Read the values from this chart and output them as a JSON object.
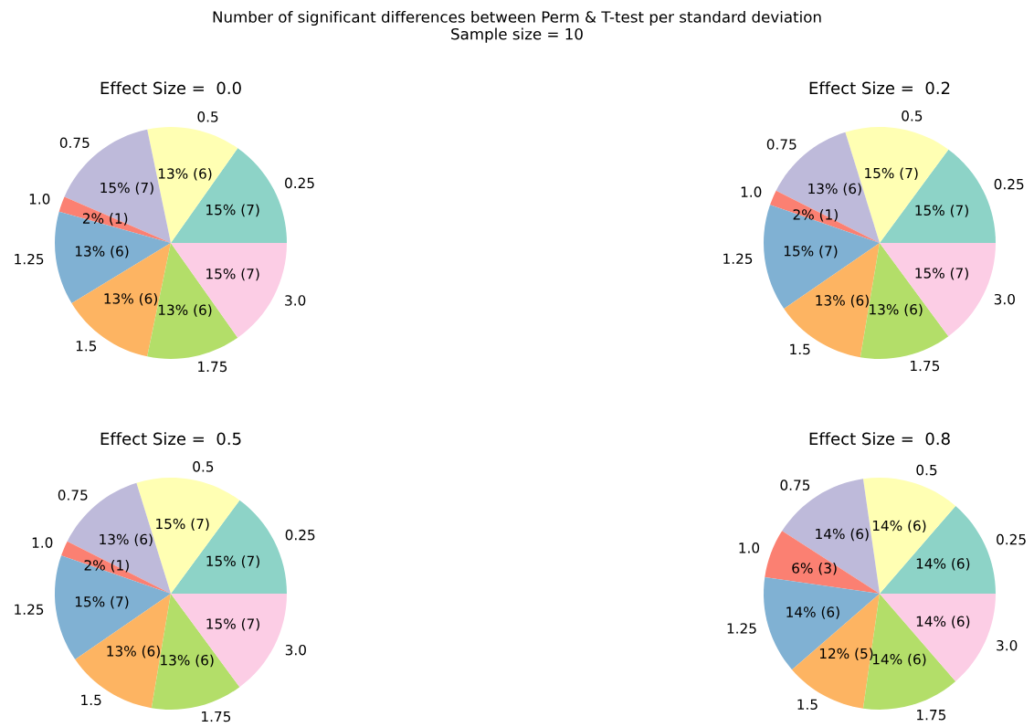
{
  "chart_data": [
    {
      "type": "pie",
      "title": "Effect Size =  0.0",
      "annotations": [
        "Number of significant differences between Perm & T-test per standard deviation\nSample size = 10"
      ],
      "categories": [
        "0.25",
        "0.5",
        "0.75",
        "1.0",
        "1.25",
        "1.5",
        "1.75",
        "3.0"
      ],
      "values": [
        7,
        6,
        7,
        1,
        6,
        6,
        6,
        7
      ],
      "value_labels": [
        "15% (7)",
        "13% (6)",
        "15% (7)",
        "2% (1)",
        "13% (6)",
        "13% (6)",
        "13% (6)",
        "15% (7)"
      ],
      "colors": [
        "#8dd3c7",
        "#ffffb3",
        "#bebada",
        "#fb8072",
        "#80b1d3",
        "#fdb462",
        "#b3de69",
        "#fccde5"
      ]
    },
    {
      "type": "pie",
      "title": "Effect Size =  0.2",
      "categories": [
        "0.25",
        "0.5",
        "0.75",
        "1.0",
        "1.25",
        "1.5",
        "1.75",
        "3.0"
      ],
      "values": [
        7,
        7,
        6,
        1,
        7,
        6,
        6,
        7
      ],
      "value_labels": [
        "15% (7)",
        "15% (7)",
        "13% (6)",
        "2% (1)",
        "15% (7)",
        "13% (6)",
        "13% (6)",
        "15% (7)"
      ],
      "colors": [
        "#8dd3c7",
        "#ffffb3",
        "#bebada",
        "#fb8072",
        "#80b1d3",
        "#fdb462",
        "#b3de69",
        "#fccde5"
      ]
    },
    {
      "type": "pie",
      "title": "Effect Size =  0.5",
      "categories": [
        "0.25",
        "0.5",
        "0.75",
        "1.0",
        "1.25",
        "1.5",
        "1.75",
        "3.0"
      ],
      "values": [
        7,
        7,
        6,
        1,
        7,
        6,
        6,
        7
      ],
      "value_labels": [
        "15% (7)",
        "15% (7)",
        "13% (6)",
        "2% (1)",
        "15% (7)",
        "13% (6)",
        "13% (6)",
        "15% (7)"
      ],
      "colors": [
        "#8dd3c7",
        "#ffffb3",
        "#bebada",
        "#fb8072",
        "#80b1d3",
        "#fdb462",
        "#b3de69",
        "#fccde5"
      ]
    },
    {
      "type": "pie",
      "title": "Effect Size =  0.8",
      "categories": [
        "0.25",
        "0.5",
        "0.75",
        "1.0",
        "1.25",
        "1.5",
        "1.75",
        "3.0"
      ],
      "values": [
        6,
        6,
        6,
        3,
        6,
        5,
        6,
        6
      ],
      "value_labels": [
        "14% (6)",
        "14% (6)",
        "14% (6)",
        "6% (3)",
        "14% (6)",
        "12% (5)",
        "14% (6)",
        "14% (6)"
      ],
      "colors": [
        "#8dd3c7",
        "#ffffb3",
        "#bebada",
        "#fb8072",
        "#80b1d3",
        "#fdb462",
        "#b3de69",
        "#fccde5"
      ]
    }
  ]
}
